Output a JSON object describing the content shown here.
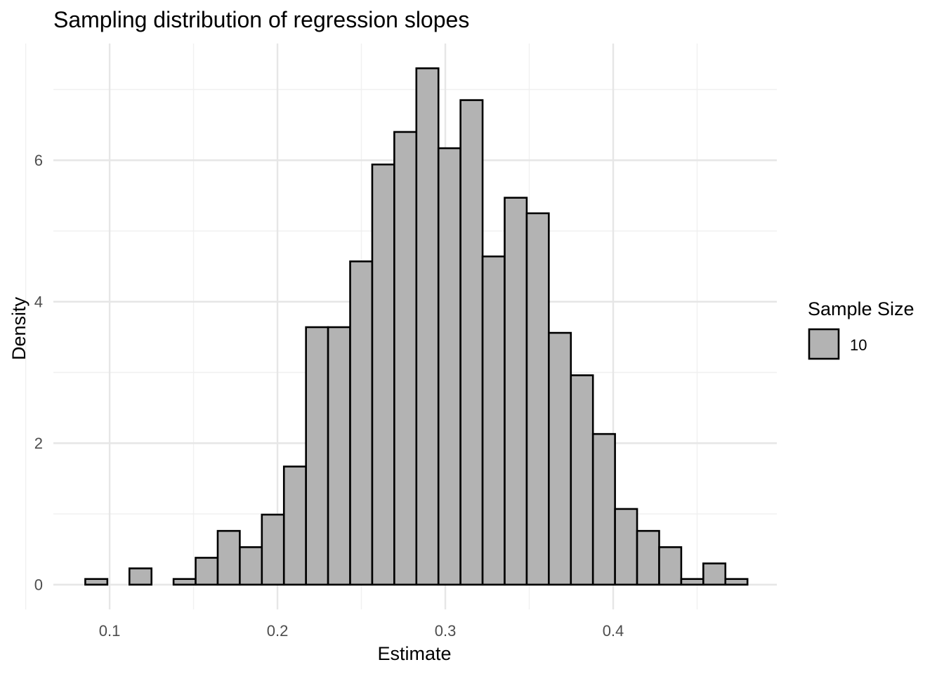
{
  "chart_data": {
    "type": "bar",
    "title": "Sampling distribution of regression slopes",
    "xlabel": "Estimate",
    "ylabel": "Density",
    "xlim": [
      0.0665,
      0.4975
    ],
    "ylim": [
      -0.35,
      7.65
    ],
    "x_ticks": [
      0.1,
      0.2,
      0.3,
      0.4
    ],
    "x_tick_labels": [
      "0.1",
      "0.2",
      "0.3",
      "0.4"
    ],
    "y_ticks": [
      0,
      2,
      4,
      6
    ],
    "y_tick_labels": [
      "0",
      "2",
      "4",
      "6"
    ],
    "grid": true,
    "bin_width": 0.01315,
    "x_start": 0.0855,
    "values": [
      0.08,
      0.0,
      0.23,
      0.0,
      0.08,
      0.38,
      0.76,
      0.53,
      0.99,
      1.67,
      3.64,
      3.64,
      4.57,
      5.94,
      6.4,
      7.3,
      6.17,
      6.85,
      4.64,
      5.47,
      5.25,
      3.56,
      2.96,
      2.13,
      1.07,
      0.76,
      0.53,
      0.08,
      0.3,
      0.08
    ],
    "series": [
      {
        "name": "10",
        "color": "#b3b3b3"
      }
    ],
    "legend": {
      "title": "Sample Size",
      "position": "right",
      "labels": [
        "10"
      ]
    }
  },
  "colors": {
    "bar_fill": "#b3b3b3",
    "bar_stroke": "#000000",
    "grid": "#e6e6e6"
  }
}
